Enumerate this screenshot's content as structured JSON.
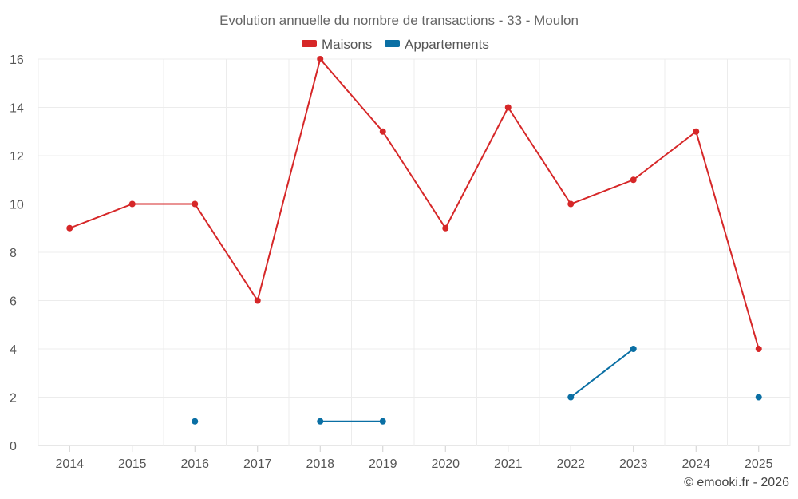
{
  "chart_data": {
    "type": "line",
    "title": "Evolution annuelle du nombre de transactions - 33 - Moulon",
    "categories": [
      "2014",
      "2015",
      "2016",
      "2017",
      "2018",
      "2019",
      "2020",
      "2021",
      "2022",
      "2023",
      "2024",
      "2025"
    ],
    "ylim": [
      0,
      16
    ],
    "yticks": [
      0,
      2,
      4,
      6,
      8,
      10,
      12,
      14,
      16
    ],
    "grid": true,
    "legend": "top-center",
    "series": [
      {
        "name": "Maisons",
        "color": "#d62728",
        "values": [
          9,
          10,
          10,
          6,
          16,
          13,
          9,
          14,
          10,
          11,
          13,
          4
        ]
      },
      {
        "name": "Appartements",
        "color": "#0a6fa4",
        "values": [
          null,
          null,
          1,
          null,
          1,
          1,
          null,
          null,
          2,
          4,
          null,
          2
        ]
      }
    ]
  },
  "credit": "© emooki.fr - 2026"
}
